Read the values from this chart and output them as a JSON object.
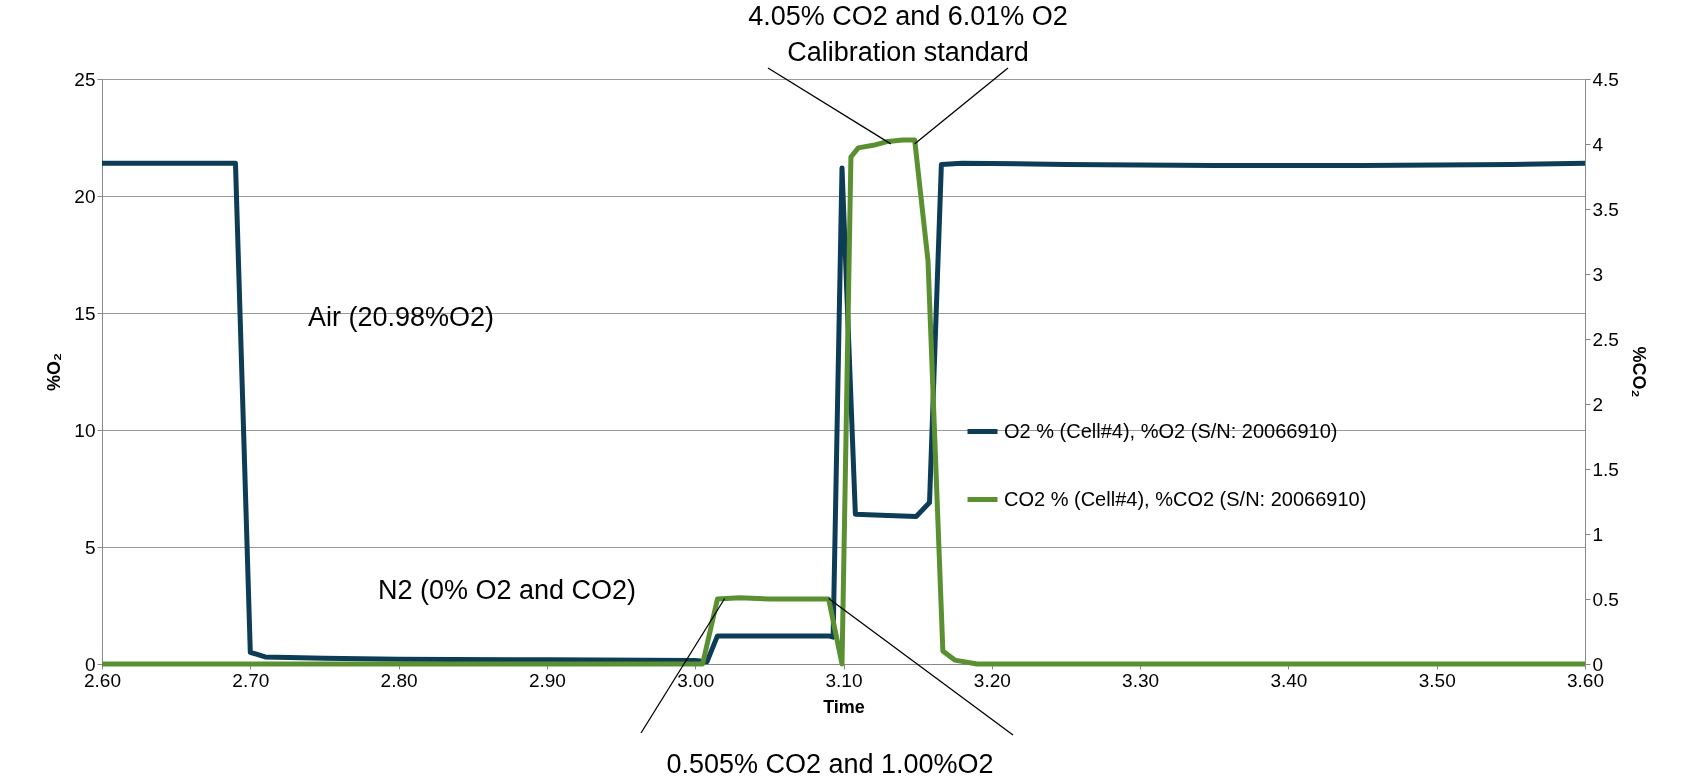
{
  "chart_data": {
    "type": "line",
    "xlabel": "Time",
    "ylabel": "%O₂",
    "y2label": "%CO₂",
    "xlim": [
      2.6,
      3.6
    ],
    "xticks": [
      {
        "value": 2.6,
        "label": "2.60"
      },
      {
        "value": 2.7,
        "label": "2.70"
      },
      {
        "value": 2.8,
        "label": "2.80"
      },
      {
        "value": 2.9,
        "label": "2.90"
      },
      {
        "value": 3.0,
        "label": "3.00"
      },
      {
        "value": 3.1,
        "label": "3.10"
      },
      {
        "value": 3.2,
        "label": "3.20"
      },
      {
        "value": 3.3,
        "label": "3.30"
      },
      {
        "value": 3.4,
        "label": "3.40"
      },
      {
        "value": 3.5,
        "label": "3.50"
      },
      {
        "value": 3.6,
        "label": "3.60"
      }
    ],
    "ylim": [
      0,
      25
    ],
    "yticks": [
      0,
      5,
      10,
      15,
      20,
      25
    ],
    "y2lim": [
      0,
      4.5
    ],
    "y2ticks": [
      0,
      0.5,
      1,
      1.5,
      2,
      2.5,
      3,
      3.5,
      4,
      4.5
    ],
    "grid": "y",
    "legend": "right",
    "marker": "none",
    "line_style": "solid",
    "series": [
      {
        "name": "O2 % (Cell#4), %O2 (S/N: 20066910)",
        "color": "#0d3d56",
        "x": [
          2.6,
          2.69,
          2.7,
          2.71,
          2.75,
          2.8,
          2.9,
          3.0,
          3.008,
          3.015,
          3.05,
          3.09,
          3.093,
          3.099,
          3.108,
          3.13,
          3.149,
          3.158,
          3.166,
          3.18,
          3.25,
          3.35,
          3.45,
          3.55,
          3.6
        ],
        "values": [
          21.4,
          21.4,
          0.5,
          0.3,
          0.25,
          0.2,
          0.18,
          0.15,
          0.1,
          1.2,
          1.2,
          1.2,
          1.15,
          21.2,
          6.4,
          6.35,
          6.3,
          6.9,
          21.35,
          21.4,
          21.35,
          21.3,
          21.3,
          21.35,
          21.4
        ]
      },
      {
        "name": "CO2 % (Cell#4), %CO2 (S/N: 20066910)",
        "color": "#5a9032",
        "axis": "y2",
        "x": [
          2.6,
          2.8,
          3.0,
          3.005,
          3.015,
          3.03,
          3.05,
          3.09,
          3.099,
          3.105,
          3.11,
          3.12,
          3.13,
          3.14,
          3.148,
          3.157,
          3.167,
          3.175,
          3.19,
          3.3,
          3.6
        ],
        "values": [
          0,
          0,
          0,
          0,
          0.5,
          0.51,
          0.5,
          0.5,
          0,
          3.9,
          3.97,
          3.99,
          4.02,
          4.03,
          4.03,
          3.1,
          0.1,
          0.03,
          0,
          0,
          0
        ]
      }
    ],
    "annotations": [
      "Air (20.98%O2)",
      "N2 (0% O2 and CO2)",
      "4.05% CO2 and 6.01% O2",
      {
        "text": "Calibration standard",
        "x": 3.14,
        "y": 22.4
      },
      {
        "text": "0.505% CO2 and 1.00%O2",
        "x": 3.09,
        "y": 2.8
      }
    ]
  }
}
